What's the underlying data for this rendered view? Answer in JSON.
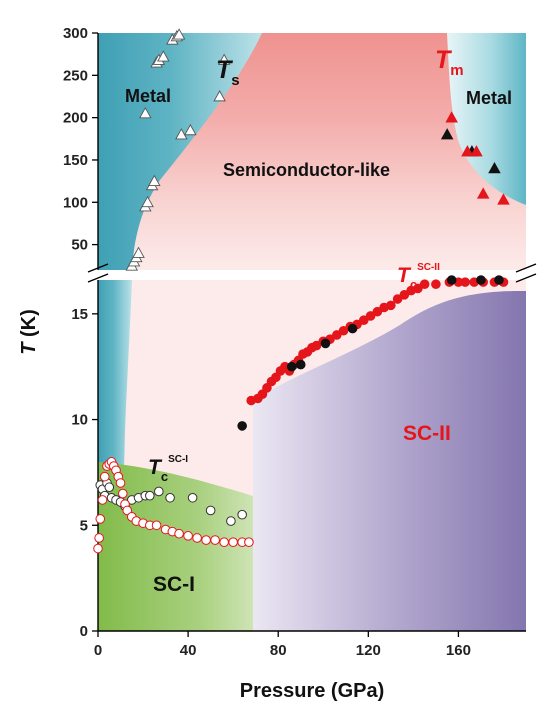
{
  "chart_data": {
    "type": "scatter",
    "xlabel": "Pressure (GPa)",
    "ylabel_italic": "T",
    "ylabel_rest": " (K)",
    "xlim": [
      0,
      190
    ],
    "x_ticks": [
      0,
      40,
      80,
      120,
      160
    ],
    "y_lower_lim": [
      0,
      16.6
    ],
    "y_lower_ticks": [
      0,
      5,
      10,
      15
    ],
    "y_upper_lim": [
      20,
      300
    ],
    "y_upper_ticks": [
      50,
      100,
      150,
      200,
      250,
      300
    ],
    "axis_break": true,
    "grid": false,
    "regions": {
      "metal_left": "Metal",
      "metal_right": "Metal",
      "semiconductor": "Semiconductor-like",
      "sc1": "SC-I",
      "sc2": "SC-II"
    },
    "annotations": {
      "ts_main": "T",
      "ts_sub": "s",
      "tm_main": "T",
      "tm_sub": "m",
      "tc2_main": "T",
      "tc2_sub": "c",
      "tc2_sup": "SC-II",
      "tc1_main": "T",
      "tc1_sub": "c",
      "tc1_sup": "SC-I"
    },
    "colors": {
      "metal": "#3fa0b4",
      "semiconductor": "#ef9a96",
      "sc1": "#8bbf52",
      "sc2": "#8a7bb3",
      "red": "#e4161b",
      "black": "#111111"
    },
    "series": [
      {
        "marker": "open-triangle",
        "panel": "upper",
        "points": [
          [
            15,
            25
          ],
          [
            16,
            30
          ],
          [
            17,
            35
          ],
          [
            18,
            40
          ],
          [
            21,
            95
          ],
          [
            22,
            100
          ],
          [
            24,
            120
          ],
          [
            25,
            125
          ],
          [
            21,
            205
          ],
          [
            26,
            265
          ],
          [
            27,
            268
          ],
          [
            29,
            272
          ],
          [
            33,
            292
          ],
          [
            35,
            296
          ],
          [
            36,
            298
          ],
          [
            37,
            180
          ],
          [
            41,
            185
          ],
          [
            54,
            225
          ],
          [
            56,
            268
          ]
        ]
      },
      {
        "marker": "filled-triangle-black",
        "panel": "upper",
        "points": [
          [
            155,
            180
          ],
          [
            166,
            160
          ],
          [
            176,
            140
          ]
        ]
      },
      {
        "marker": "filled-triangle-red",
        "panel": "upper",
        "points": [
          [
            157,
            200
          ],
          [
            164,
            160
          ],
          [
            168,
            160
          ],
          [
            171,
            110
          ],
          [
            180,
            103
          ]
        ]
      },
      {
        "marker": "filled-circle-red",
        "panel": "lower",
        "points": [
          [
            68,
            10.9
          ],
          [
            71,
            11.0
          ],
          [
            73,
            11.2
          ],
          [
            75,
            11.5
          ],
          [
            77,
            11.8
          ],
          [
            79,
            12.0
          ],
          [
            81,
            12.3
          ],
          [
            83,
            12.5
          ],
          [
            85,
            12.3
          ],
          [
            87,
            12.6
          ],
          [
            89,
            12.8
          ],
          [
            91,
            13.1
          ],
          [
            93,
            13.2
          ],
          [
            95,
            13.4
          ],
          [
            97,
            13.5
          ],
          [
            100,
            13.7
          ],
          [
            103,
            13.8
          ],
          [
            106,
            14.0
          ],
          [
            109,
            14.2
          ],
          [
            112,
            14.4
          ],
          [
            115,
            14.5
          ],
          [
            118,
            14.7
          ],
          [
            121,
            14.9
          ],
          [
            124,
            15.1
          ],
          [
            127,
            15.3
          ],
          [
            130,
            15.4
          ],
          [
            133,
            15.7
          ],
          [
            136,
            15.9
          ],
          [
            139,
            16.1
          ],
          [
            142,
            16.2
          ],
          [
            145,
            16.4
          ],
          [
            150,
            16.4
          ],
          [
            156,
            16.5
          ],
          [
            160,
            16.5
          ],
          [
            163,
            16.5
          ],
          [
            167,
            16.5
          ],
          [
            171,
            16.5
          ],
          [
            176,
            16.5
          ],
          [
            180,
            16.5
          ]
        ]
      },
      {
        "marker": "filled-circle-black",
        "panel": "lower",
        "points": [
          [
            64,
            9.7
          ],
          [
            86,
            12.5
          ],
          [
            90,
            12.6
          ],
          [
            101,
            13.6
          ],
          [
            113,
            14.3
          ],
          [
            157,
            16.6
          ],
          [
            170,
            16.6
          ],
          [
            178,
            16.6
          ]
        ]
      },
      {
        "marker": "open-circle-black",
        "panel": "lower",
        "points": [
          [
            1,
            6.9
          ],
          [
            2,
            6.7
          ],
          [
            3,
            6.4
          ],
          [
            4,
            7.0
          ],
          [
            5,
            6.8
          ],
          [
            6,
            6.3
          ],
          [
            8,
            6.2
          ],
          [
            10,
            6.1
          ],
          [
            12,
            5.9
          ],
          [
            15,
            6.2
          ],
          [
            18,
            6.3
          ],
          [
            21,
            6.4
          ],
          [
            23,
            6.4
          ],
          [
            27,
            6.6
          ],
          [
            32,
            6.3
          ],
          [
            42,
            6.3
          ],
          [
            50,
            5.7
          ],
          [
            59,
            5.2
          ],
          [
            64,
            5.5
          ]
        ]
      },
      {
        "marker": "open-circle-red",
        "panel": "lower",
        "points": [
          [
            0,
            3.9
          ],
          [
            0.5,
            4.4
          ],
          [
            1,
            5.3
          ],
          [
            2,
            6.2
          ],
          [
            3,
            7.3
          ],
          [
            4,
            7.8
          ],
          [
            5,
            7.9
          ],
          [
            6,
            8.0
          ],
          [
            7,
            7.8
          ],
          [
            8,
            7.6
          ],
          [
            9,
            7.3
          ],
          [
            10,
            7.0
          ],
          [
            11,
            6.5
          ],
          [
            12,
            6.0
          ],
          [
            13,
            5.7
          ],
          [
            15,
            5.4
          ],
          [
            17,
            5.2
          ],
          [
            20,
            5.1
          ],
          [
            23,
            5.0
          ],
          [
            26,
            5.0
          ],
          [
            30,
            4.8
          ],
          [
            33,
            4.7
          ],
          [
            36,
            4.6
          ],
          [
            40,
            4.5
          ],
          [
            44,
            4.4
          ],
          [
            48,
            4.3
          ],
          [
            52,
            4.3
          ],
          [
            56,
            4.2
          ],
          [
            60,
            4.2
          ],
          [
            64,
            4.2
          ],
          [
            67,
            4.2
          ]
        ]
      }
    ]
  }
}
